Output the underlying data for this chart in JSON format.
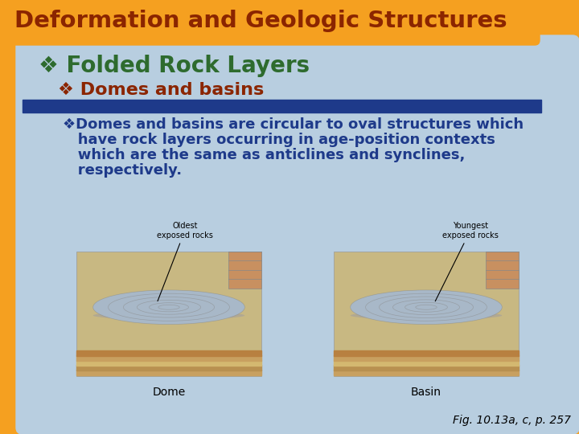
{
  "title": "Deformation and Geologic Structures",
  "title_color": "#8B2500",
  "title_bg_color": "#F5A020",
  "title_fontsize": 21,
  "bg_color_orange": "#F5A020",
  "bg_color_blue": "#B8CEE0",
  "bullet1_text": "Folded Rock Layers",
  "bullet1_color": "#2E6B2E",
  "bullet1_fontsize": 20,
  "bullet2_text": "Domes and basins",
  "bullet2_color": "#8B2500",
  "bullet2_fontsize": 16,
  "divider_color": "#1E3A8A",
  "body_text_color": "#1E3A8A",
  "body_fontsize": 13,
  "caption_text": "Fig. 10.13a, c, p. 257",
  "caption_color": "#000000",
  "caption_fontsize": 10,
  "dome_label": "Dome",
  "basin_label": "Basin",
  "label_color": "#000000",
  "label_fontsize": 10,
  "oldest_label": "Oldest\nexposed rocks",
  "youngest_label": "Youngest\nexposed rocks"
}
